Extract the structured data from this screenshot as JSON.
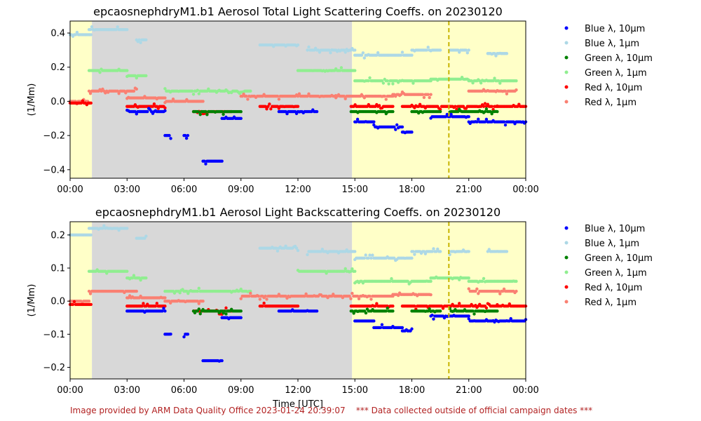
{
  "chart_data": [
    {
      "type": "scatter",
      "title": "epcaosnephdryM1.b1 Aerosol Total Light Scattering Coeffs. on 20230120",
      "ylabel": "(1/Mm)",
      "xlabel": "",
      "xlim": [
        0,
        24
      ],
      "ylim": [
        -0.45,
        0.47
      ],
      "xticks": [
        "00:00",
        "03:00",
        "06:00",
        "09:00",
        "12:00",
        "15:00",
        "18:00",
        "21:00",
        "00:00"
      ],
      "yticks": [
        -0.4,
        -0.2,
        0.0,
        0.2,
        0.4
      ],
      "ytick_labels": [
        "−0.4",
        "−0.2",
        "0.0",
        "0.2",
        "0.4"
      ],
      "legend_position": "outside-right",
      "series": [
        {
          "name": "Blue λ, 10µm",
          "color": "#0000ff"
        },
        {
          "name": "Blue λ, 1µm",
          "color": "#add8e6"
        },
        {
          "name": "Green λ, 10µm",
          "color": "#008000"
        },
        {
          "name": "Green λ, 1µm",
          "color": "#90ee90"
        },
        {
          "name": "Red λ, 10µm",
          "color": "#ff0000"
        },
        {
          "name": "Red λ, 1µm",
          "color": "#fa8072"
        }
      ],
      "shaded_regions": [
        {
          "x": [
            0,
            1.15
          ],
          "color": "#ffffc8"
        },
        {
          "x": [
            1.15,
            14.85
          ],
          "color": "#d8d8d8"
        },
        {
          "x": [
            14.85,
            24
          ],
          "color": "#ffffc8"
        }
      ],
      "vertical_line": {
        "x": 19.95,
        "color": "#c8b400"
      },
      "values": [
        {
          "series": 1,
          "segments": [
            [
              0.0,
              1.1,
              0.39
            ],
            [
              1.0,
              3.0,
              0.42
            ],
            [
              3.5,
              4.0,
              0.36
            ],
            [
              10.0,
              12.0,
              0.33
            ],
            [
              12.5,
              15.0,
              0.3
            ],
            [
              15.0,
              18.0,
              0.27
            ],
            [
              18.0,
              19.5,
              0.3
            ],
            [
              20.0,
              21.0,
              0.3
            ],
            [
              22.0,
              23.0,
              0.28
            ]
          ]
        },
        {
          "series": 3,
          "segments": [
            [
              1.0,
              3.0,
              0.18
            ],
            [
              3.0,
              4.0,
              0.15
            ],
            [
              5.0,
              9.5,
              0.06
            ],
            [
              12.0,
              15.0,
              0.18
            ],
            [
              15.0,
              17.0,
              0.12
            ],
            [
              17.0,
              19.0,
              0.12
            ],
            [
              19.0,
              21.0,
              0.13
            ],
            [
              21.0,
              23.5,
              0.12
            ]
          ]
        },
        {
          "series": 5,
          "segments": [
            [
              0.0,
              1.0,
              0.0
            ],
            [
              1.0,
              3.5,
              0.06
            ],
            [
              3.0,
              5.0,
              0.02
            ],
            [
              5.0,
              7.0,
              0.0
            ],
            [
              9.0,
              14.0,
              0.03
            ],
            [
              14.0,
              17.0,
              0.03
            ],
            [
              17.0,
              19.0,
              0.04
            ],
            [
              21.0,
              23.5,
              0.06
            ]
          ]
        },
        {
          "series": 4,
          "segments": [
            [
              0.0,
              1.1,
              -0.01
            ],
            [
              3.0,
              5.0,
              -0.03
            ],
            [
              6.5,
              8.5,
              -0.06
            ],
            [
              10.0,
              12.0,
              -0.03
            ],
            [
              14.8,
              17.0,
              -0.03
            ],
            [
              17.5,
              20.0,
              -0.03
            ],
            [
              20.0,
              22.5,
              -0.03
            ],
            [
              22.5,
              24.0,
              -0.03
            ]
          ]
        },
        {
          "series": 2,
          "segments": [
            [
              6.5,
              9.0,
              -0.06
            ],
            [
              14.8,
              17.0,
              -0.06
            ],
            [
              18.0,
              19.5,
              -0.06
            ],
            [
              20.0,
              22.5,
              -0.06
            ]
          ]
        },
        {
          "series": 0,
          "segments": [
            [
              3.0,
              5.0,
              -0.06
            ],
            [
              5.0,
              5.3,
              -0.2
            ],
            [
              6.0,
              6.2,
              -0.2
            ],
            [
              7.0,
              8.0,
              -0.35
            ],
            [
              8.0,
              9.0,
              -0.1
            ],
            [
              11.0,
              13.0,
              -0.06
            ],
            [
              15.0,
              16.0,
              -0.12
            ],
            [
              16.0,
              17.5,
              -0.15
            ],
            [
              17.5,
              18.0,
              -0.18
            ],
            [
              19.0,
              21.0,
              -0.09
            ],
            [
              21.0,
              22.0,
              -0.12
            ],
            [
              22.0,
              24.0,
              -0.12
            ]
          ]
        }
      ]
    },
    {
      "type": "scatter",
      "title": "epcaosnephdryM1.b1 Aerosol Light Backscattering Coeffs. on 20230120",
      "ylabel": "(1/Mm)",
      "xlabel": "Time [UTC]",
      "xlim": [
        0,
        24
      ],
      "ylim": [
        -0.235,
        0.24
      ],
      "xticks": [
        "00:00",
        "03:00",
        "06:00",
        "09:00",
        "12:00",
        "15:00",
        "18:00",
        "21:00",
        "00:00"
      ],
      "yticks": [
        -0.2,
        -0.1,
        0.0,
        0.1,
        0.2
      ],
      "ytick_labels": [
        "−0.2",
        "−0.1",
        "0.0",
        "0.1",
        "0.2"
      ],
      "legend_position": "outside-right",
      "series": [
        {
          "name": "Blue λ, 10µm",
          "color": "#0000ff"
        },
        {
          "name": "Blue λ, 1µm",
          "color": "#add8e6"
        },
        {
          "name": "Green λ, 10µm",
          "color": "#008000"
        },
        {
          "name": "Green λ, 1µm",
          "color": "#90ee90"
        },
        {
          "name": "Red λ, 10µm",
          "color": "#ff0000"
        },
        {
          "name": "Red λ, 1µm",
          "color": "#fa8072"
        }
      ],
      "shaded_regions": [
        {
          "x": [
            0,
            1.15
          ],
          "color": "#ffffc8"
        },
        {
          "x": [
            1.15,
            14.85
          ],
          "color": "#d8d8d8"
        },
        {
          "x": [
            14.85,
            24
          ],
          "color": "#ffffc8"
        }
      ],
      "vertical_line": {
        "x": 19.95,
        "color": "#c8b400"
      },
      "values": [
        {
          "series": 1,
          "segments": [
            [
              0.0,
              1.1,
              0.2
            ],
            [
              1.0,
              3.0,
              0.22
            ],
            [
              3.5,
              4.0,
              0.19
            ],
            [
              10.0,
              12.0,
              0.16
            ],
            [
              12.5,
              15.0,
              0.15
            ],
            [
              15.0,
              18.0,
              0.13
            ],
            [
              18.0,
              19.5,
              0.15
            ],
            [
              20.0,
              21.0,
              0.15
            ],
            [
              22.0,
              23.0,
              0.15
            ]
          ]
        },
        {
          "series": 3,
          "segments": [
            [
              1.0,
              3.0,
              0.09
            ],
            [
              3.0,
              4.0,
              0.07
            ],
            [
              5.0,
              9.5,
              0.03
            ],
            [
              12.0,
              15.0,
              0.09
            ],
            [
              15.0,
              17.0,
              0.06
            ],
            [
              17.0,
              19.0,
              0.06
            ],
            [
              19.0,
              21.0,
              0.07
            ],
            [
              21.0,
              23.5,
              0.06
            ]
          ]
        },
        {
          "series": 5,
          "segments": [
            [
              0.0,
              1.0,
              0.0
            ],
            [
              1.0,
              3.5,
              0.03
            ],
            [
              3.0,
              5.0,
              0.01
            ],
            [
              5.0,
              7.0,
              0.0
            ],
            [
              9.0,
              14.0,
              0.015
            ],
            [
              14.0,
              17.0,
              0.015
            ],
            [
              17.0,
              19.0,
              0.02
            ],
            [
              21.0,
              23.5,
              0.03
            ]
          ]
        },
        {
          "series": 4,
          "segments": [
            [
              0.0,
              1.1,
              -0.01
            ],
            [
              3.0,
              5.0,
              -0.015
            ],
            [
              6.5,
              8.5,
              -0.03
            ],
            [
              10.0,
              12.0,
              -0.015
            ],
            [
              14.8,
              17.0,
              -0.015
            ],
            [
              17.5,
              20.0,
              -0.015
            ],
            [
              20.0,
              22.5,
              -0.015
            ],
            [
              22.5,
              24.0,
              -0.015
            ]
          ]
        },
        {
          "series": 2,
          "segments": [
            [
              6.5,
              9.0,
              -0.03
            ],
            [
              14.8,
              17.0,
              -0.03
            ],
            [
              18.0,
              19.5,
              -0.03
            ],
            [
              20.0,
              22.5,
              -0.03
            ]
          ]
        },
        {
          "series": 0,
          "segments": [
            [
              3.0,
              5.0,
              -0.03
            ],
            [
              5.0,
              5.3,
              -0.1
            ],
            [
              6.0,
              6.2,
              -0.1
            ],
            [
              7.0,
              8.0,
              -0.18
            ],
            [
              8.0,
              9.0,
              -0.05
            ],
            [
              11.0,
              13.0,
              -0.03
            ],
            [
              15.0,
              16.0,
              -0.06
            ],
            [
              16.0,
              17.5,
              -0.08
            ],
            [
              17.5,
              18.0,
              -0.09
            ],
            [
              19.0,
              21.0,
              -0.045
            ],
            [
              21.0,
              22.0,
              -0.06
            ],
            [
              22.0,
              24.0,
              -0.06
            ]
          ]
        }
      ]
    }
  ],
  "footer": {
    "provider": "Image provided by ARM Data Quality Office 2023-01-24 20:39:07",
    "note": "*** Data collected outside of official campaign dates ***"
  }
}
